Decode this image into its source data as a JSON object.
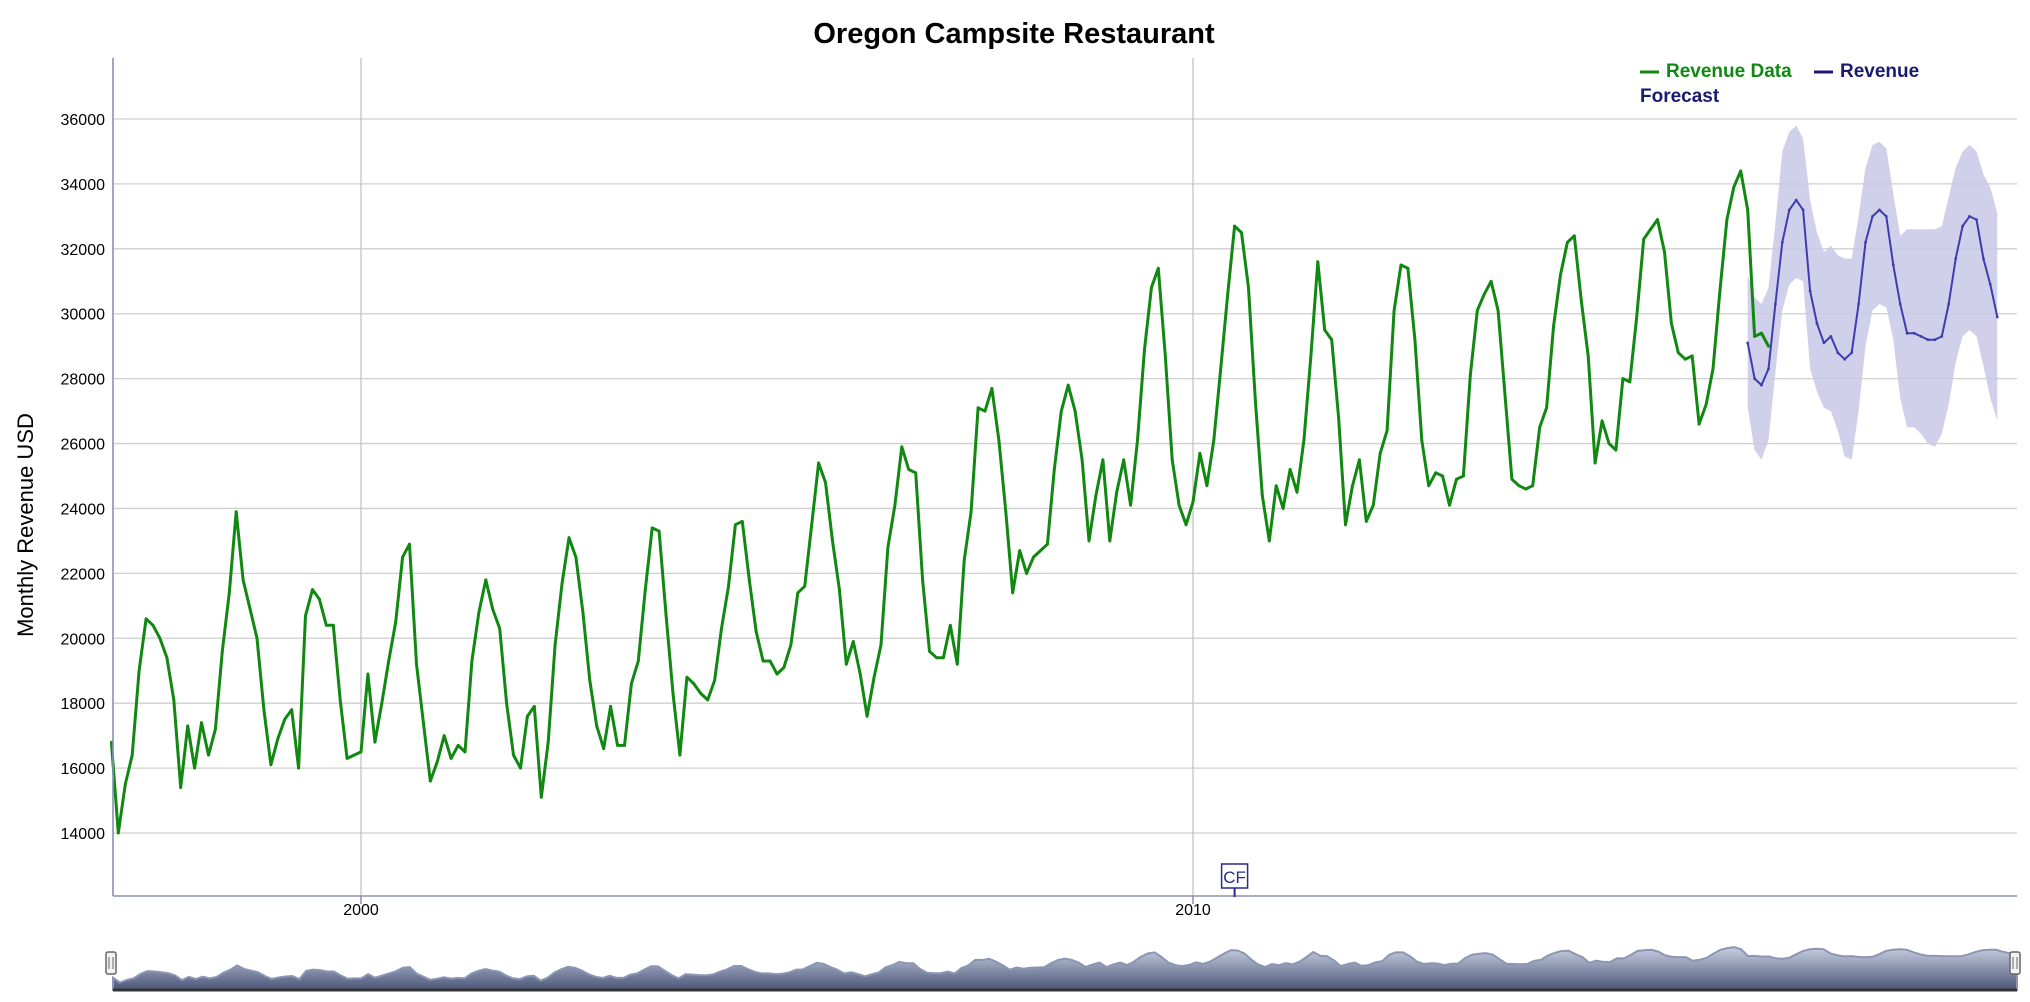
{
  "chart_data": {
    "type": "line",
    "title": "Oregon Campsite Restaurant",
    "ylabel": "Monthly Revenue USD",
    "xlabel": "",
    "x_start": "1997-01",
    "x_ticks": [
      {
        "label": "2000",
        "value": "2000-01"
      },
      {
        "label": "2010",
        "value": "2010-01"
      }
    ],
    "ylim": [
      12000,
      38000
    ],
    "y_ticks": [
      14000,
      16000,
      18000,
      20000,
      22000,
      24000,
      26000,
      28000,
      30000,
      32000,
      34000,
      36000
    ],
    "grid": true,
    "legend": "top-right",
    "colors": {
      "data": "#118811",
      "forecast": "#3d3db0",
      "band": "#c8c8e6",
      "annotation": "#2a2a8a",
      "navigator": "#8a96b4"
    },
    "annotation": {
      "text": "CF",
      "date": "2010-07"
    },
    "series": [
      {
        "name": "Revenue Data",
        "start": "1997-01",
        "values": [
          16800,
          14000,
          15500,
          16400,
          19000,
          20600,
          20400,
          20000,
          19400,
          18100,
          15400,
          17300,
          16000,
          17400,
          16400,
          17200,
          19600,
          21400,
          23900,
          21800,
          20900,
          20000,
          17800,
          16100,
          16900,
          17500,
          17800,
          16000,
          20700,
          21500,
          21200,
          20400,
          20400,
          18100,
          16300,
          16400,
          16500,
          18900,
          16800,
          18000,
          19300,
          20500,
          22500,
          22900,
          19200,
          17400,
          15600,
          16200,
          17000,
          16300,
          16700,
          16500,
          19300,
          20800,
          21800,
          20900,
          20300,
          18000,
          16400,
          16000,
          17600,
          17900,
          15100,
          16800,
          19800,
          21700,
          23100,
          22500,
          20800,
          18700,
          17300,
          16600,
          17900,
          16700,
          16700,
          18600,
          19300,
          21500,
          23400,
          23300,
          20700,
          18300,
          16400,
          18800,
          18600,
          18300,
          18100,
          18700,
          20300,
          21600,
          23500,
          23600,
          21800,
          20200,
          19300,
          19300,
          18900,
          19100,
          19800,
          21400,
          21600,
          23500,
          25400,
          24800,
          23000,
          21500,
          19200,
          19900,
          18900,
          17600,
          18800,
          19800,
          22800,
          24100,
          25900,
          25200,
          25100,
          21800,
          19600,
          19400,
          19400,
          20400,
          19200,
          22400,
          23900,
          27100,
          27000,
          27700,
          26100,
          23900,
          21400,
          22700,
          22000,
          22500,
          22700,
          22900,
          25200,
          27000,
          27800,
          27000,
          25500,
          23000,
          24400,
          25500,
          23000,
          24500,
          25500,
          24100,
          26100,
          28900,
          30800,
          31400,
          28700,
          25500,
          24100,
          23500,
          24200,
          25700,
          24700,
          26100,
          28300,
          30600,
          32700,
          32500,
          30800,
          27300,
          24400,
          23000,
          24700,
          24000,
          25200,
          24500,
          26100,
          28700,
          31600,
          29500,
          29200,
          26800,
          23500,
          24700,
          25500,
          23600,
          24100,
          25700,
          26400,
          30100,
          31500,
          31400,
          29200,
          26100,
          24700,
          25100,
          25000,
          24100,
          24900,
          25000,
          28100,
          30100,
          30600,
          31000,
          30100,
          27500,
          24900,
          24700,
          24600,
          24700,
          26500,
          27100,
          29600,
          31200,
          32200,
          32400,
          30400,
          28700,
          25400,
          26700,
          26000,
          25800,
          28000,
          27900,
          29900,
          32300,
          32600,
          32900,
          31900,
          29700,
          28800,
          28600,
          28700,
          26600,
          27200,
          28300,
          30700,
          32900,
          33900,
          34400,
          33200,
          29300,
          29400,
          29000
        ]
      },
      {
        "name": "Revenue Forecast",
        "start": "2016-09",
        "values": [
          29100,
          28000,
          27800,
          28300,
          30300,
          32200,
          33200,
          33500,
          33200,
          30700,
          29700,
          29100,
          29300,
          28800,
          28600,
          28800,
          30300,
          32200,
          33000,
          33200,
          33000,
          31500,
          30300,
          29400,
          29400,
          29300,
          29200,
          29200,
          29300,
          30300,
          31700,
          32700,
          33000,
          32900,
          31700,
          30900,
          29900
        ],
        "lower": [
          27100,
          25800,
          25500,
          26100,
          28200,
          30100,
          30900,
          31100,
          31000,
          28300,
          27600,
          27100,
          27000,
          26400,
          25600,
          25500,
          27000,
          29000,
          30100,
          30300,
          30200,
          29200,
          27400,
          26500,
          26500,
          26300,
          26000,
          25900,
          26300,
          27200,
          28500,
          29300,
          29500,
          29300,
          28400,
          27400,
          26700
        ],
        "upper": [
          31200,
          30500,
          30300,
          30800,
          32800,
          35000,
          35600,
          35800,
          35400,
          33500,
          32500,
          31900,
          32100,
          31800,
          31700,
          31700,
          33000,
          34500,
          35200,
          35300,
          35100,
          33700,
          32400,
          32600,
          32600,
          32600,
          32600,
          32600,
          32700,
          33600,
          34500,
          35000,
          35200,
          35000,
          34300,
          33900,
          33100
        ]
      }
    ]
  }
}
